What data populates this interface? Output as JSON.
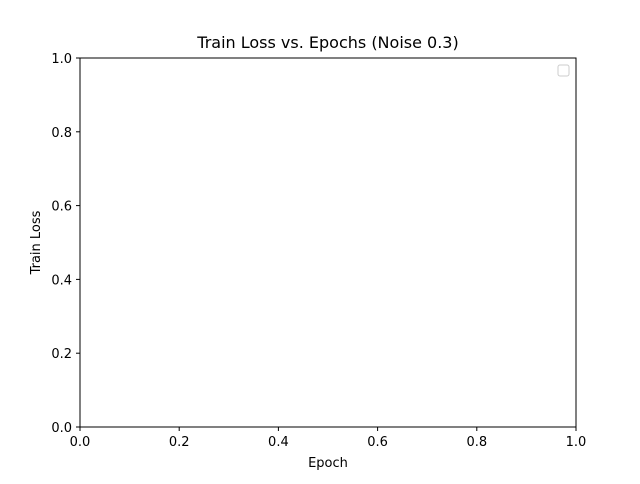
{
  "chart_data": {
    "type": "line",
    "title": "Train Loss vs. Epochs (Noise 0.3)",
    "xlabel": "Epoch",
    "ylabel": "Train Loss",
    "xlim": [
      0.0,
      1.0
    ],
    "ylim": [
      0.0,
      1.0
    ],
    "x_ticks": [
      "0.0",
      "0.2",
      "0.4",
      "0.6",
      "0.8",
      "1.0"
    ],
    "y_ticks": [
      "0.0",
      "0.2",
      "0.4",
      "0.6",
      "0.8",
      "1.0"
    ],
    "series": [],
    "grid": false,
    "legend": {
      "placement": "upper right",
      "entries": []
    }
  },
  "colors": {
    "background": "#ffffff",
    "axes": "#000000",
    "legend_border": "#cccccc"
  }
}
